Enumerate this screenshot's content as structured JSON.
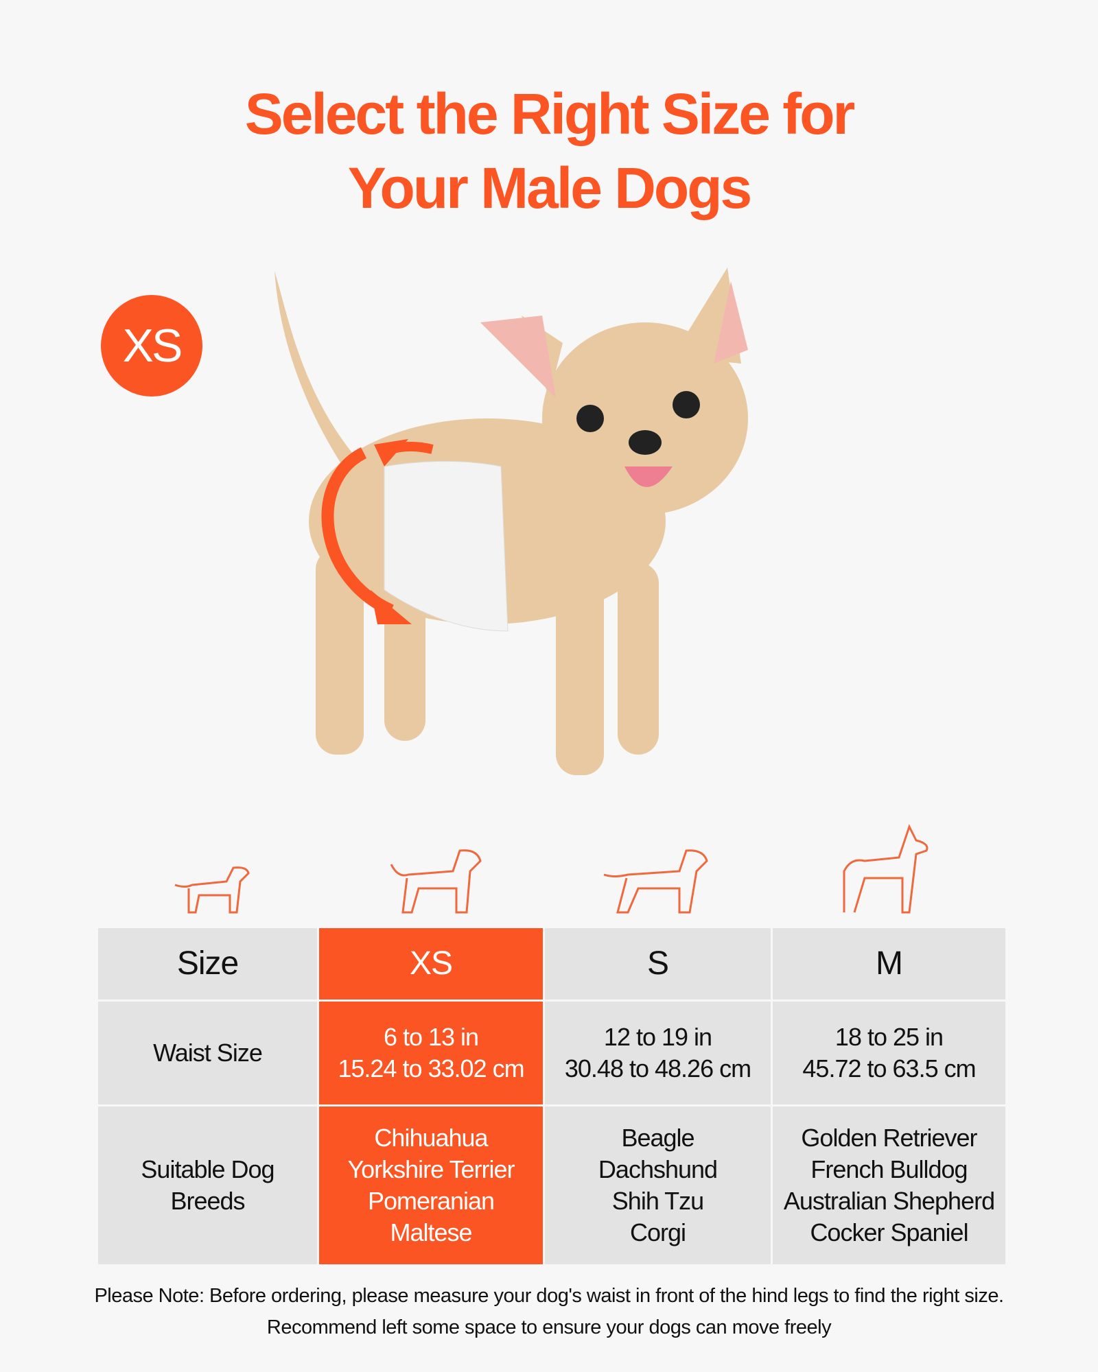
{
  "title": {
    "line1": "Select the Right Size for",
    "line2": "Your Male Dogs"
  },
  "badge": "XS",
  "colors": {
    "accent": "#fb5523",
    "cell": "#e3e3e3",
    "background": "#f7f7f7"
  },
  "icons": [
    "small-dog-icon",
    "medium-dog-icon",
    "large-dog-icon",
    "tall-dog-icon"
  ],
  "table": {
    "header": [
      "Size",
      "XS",
      "S",
      "M"
    ],
    "rows": [
      {
        "label": "Waist Size",
        "cells": [
          [
            "6 to 13 in",
            "15.24 to 33.02 cm"
          ],
          [
            "12 to 19 in",
            "30.48 to 48.26 cm"
          ],
          [
            "18 to 25 in",
            "45.72 to 63.5 cm"
          ]
        ]
      },
      {
        "label": "Suitable Dog Breeds",
        "cells": [
          [
            "Chihuahua",
            "Yorkshire Terrier",
            "Pomeranian",
            "Maltese"
          ],
          [
            "Beagle",
            "Dachshund",
            "Shih Tzu",
            "Corgi"
          ],
          [
            "Golden Retriever",
            "French Bulldog",
            "Australian Shepherd",
            "Cocker Spaniel"
          ]
        ]
      }
    ],
    "highlighted": "XS"
  },
  "note": {
    "line1": "Please Note: Before ordering, please measure your dog's waist in front of the hind legs to find the right size.",
    "line2": "Recommend left some space to ensure your dogs can move freely"
  }
}
